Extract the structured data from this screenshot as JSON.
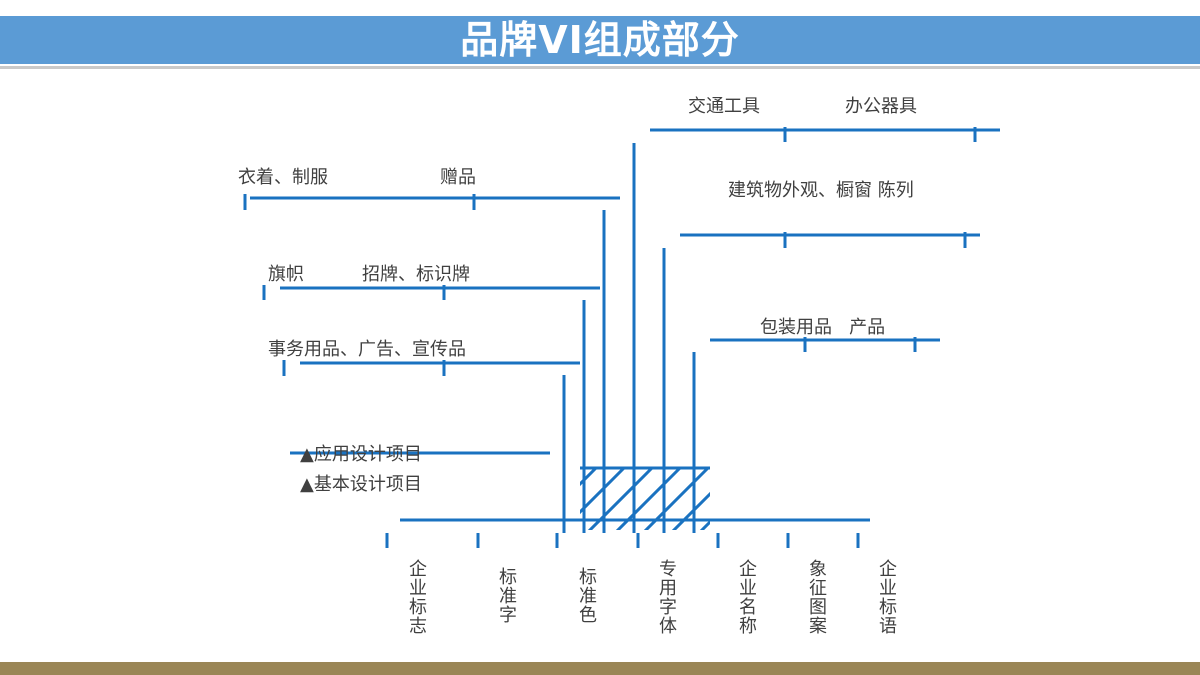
{
  "title": "品牌VI组成部分",
  "colors": {
    "title_bar": "#5b9bd5",
    "line": "#1a72c0",
    "text": "#404040",
    "footer": "#9a8656"
  },
  "applied_items": [
    {
      "id": "transport",
      "text": "交通工具"
    },
    {
      "id": "office",
      "text": "办公器具"
    },
    {
      "id": "clothing",
      "text": "衣着、制服"
    },
    {
      "id": "gifts",
      "text": "赠品"
    },
    {
      "id": "architecture",
      "text": "建筑物外观、橱窗 陈列"
    },
    {
      "id": "flags",
      "text": "旗帜"
    },
    {
      "id": "signs",
      "text": "招牌、标识牌"
    },
    {
      "id": "business",
      "text": "事务用品、广告、宣传品"
    },
    {
      "id": "packaging",
      "text": "包装用品   产品"
    }
  ],
  "legend": {
    "applied": "▲应用设计项目",
    "basic": "▲基本设计项目"
  },
  "basic_items": [
    {
      "id": "logo",
      "text": "企业标志"
    },
    {
      "id": "font",
      "text": "标准字"
    },
    {
      "id": "color",
      "text": "标准色"
    },
    {
      "id": "typeface",
      "text": "专用字体"
    },
    {
      "id": "name",
      "text": "企业名称"
    },
    {
      "id": "emblem",
      "text": "象征图案"
    },
    {
      "id": "slogan",
      "text": "企业标语"
    }
  ]
}
